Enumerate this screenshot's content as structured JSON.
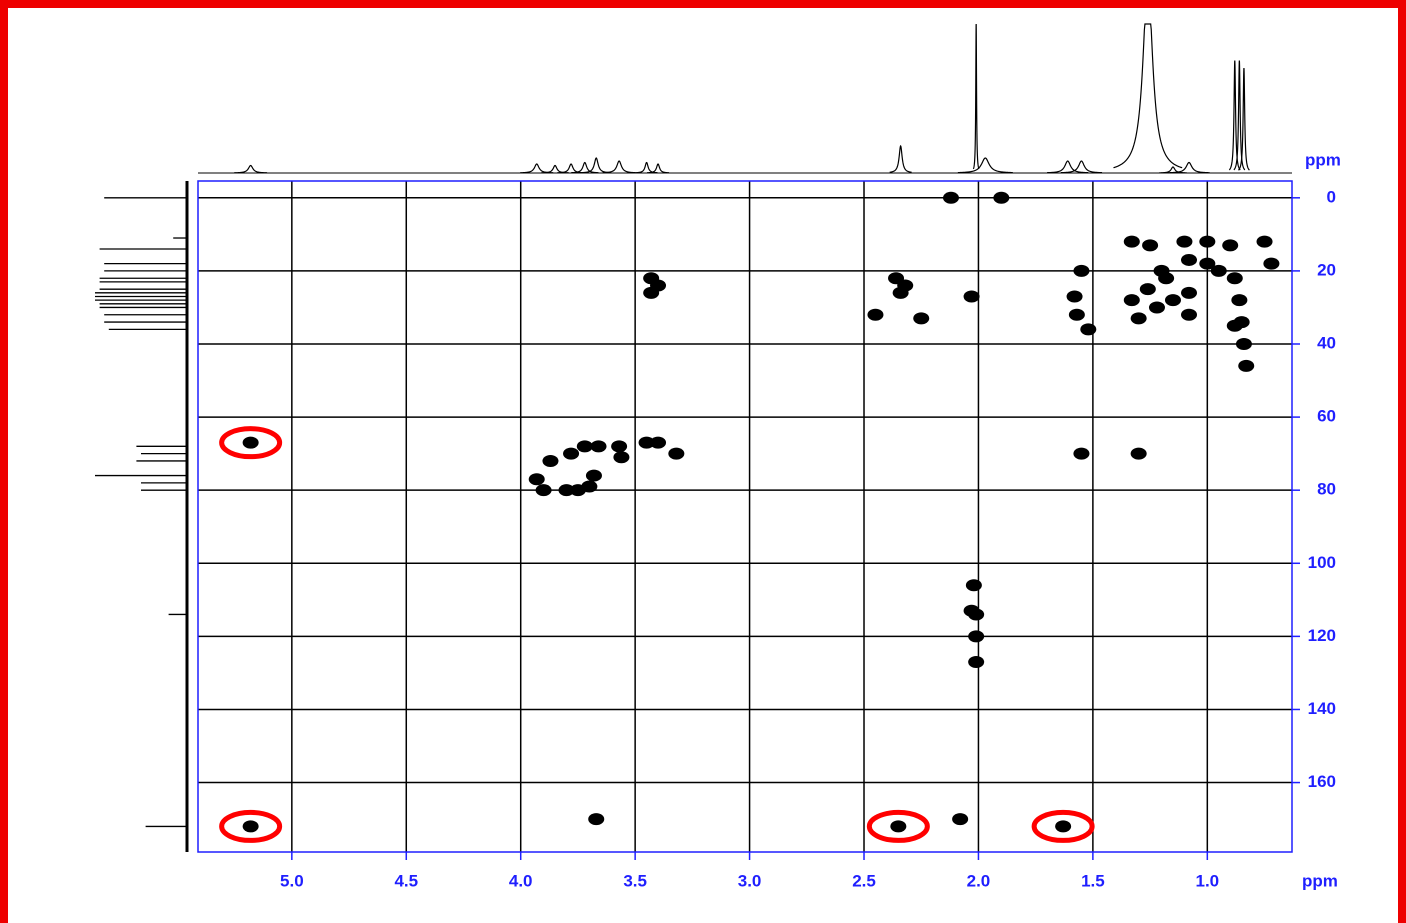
{
  "chart_data": {
    "type": "nmr2d",
    "x_label": "ppm",
    "y_label": "ppm",
    "xlim": [
      5.41,
      0.63
    ],
    "ylim": [
      179,
      -4.6
    ],
    "xticks": [
      {
        "value": 5.0,
        "label": "5.0"
      },
      {
        "value": 4.5,
        "label": "4.5"
      },
      {
        "value": 4.0,
        "label": "4.0"
      },
      {
        "value": 3.5,
        "label": "3.5"
      },
      {
        "value": 3.0,
        "label": "3.0"
      },
      {
        "value": 2.5,
        "label": "2.5"
      },
      {
        "value": 2.0,
        "label": "2.0"
      },
      {
        "value": 1.5,
        "label": "1.5"
      },
      {
        "value": 1.0,
        "label": "1.0"
      }
    ],
    "yticks": [
      0,
      20,
      40,
      60,
      80,
      100,
      120,
      140,
      160
    ],
    "grid": true,
    "peaks": {
      "color": "#000000",
      "x": [
        2.12,
        1.9,
        3.43,
        3.43,
        3.4,
        2.36,
        2.34,
        2.32,
        2.45,
        2.25,
        2.03,
        1.58,
        1.57,
        1.55,
        1.52,
        1.33,
        1.25,
        1.1,
        1.08,
        1.0,
        0.9,
        0.75,
        0.72,
        1.33,
        1.3,
        1.26,
        1.22,
        1.18,
        1.15,
        1.08,
        1.08,
        0.95,
        0.88,
        0.86,
        0.85,
        0.84,
        0.88,
        0.83,
        1.2,
        1.0,
        5.18,
        3.87,
        3.93,
        3.9,
        3.8,
        3.75,
        3.7,
        3.68,
        3.78,
        3.72,
        3.66,
        3.57,
        3.56,
        3.45,
        3.4,
        3.32,
        1.55,
        1.3,
        2.02,
        2.01,
        2.03,
        2.01,
        2.01,
        5.18,
        3.67,
        2.35,
        2.08,
        1.63
      ],
      "y": [
        0,
        0,
        22,
        26,
        24,
        22,
        26,
        24,
        32,
        33,
        27,
        27,
        32,
        20,
        36,
        12,
        13,
        12,
        17,
        12,
        13,
        12,
        18,
        28,
        33,
        25,
        30,
        22,
        28,
        26,
        32,
        20,
        22,
        28,
        34,
        40,
        35,
        46,
        20,
        18,
        67,
        72,
        77,
        80,
        80,
        80,
        79,
        76,
        70,
        68,
        68,
        68,
        71,
        67,
        67,
        70,
        70,
        70,
        106,
        114,
        113,
        120,
        127,
        172,
        170,
        172,
        170,
        172
      ]
    },
    "highlight": {
      "color": "#ff0000",
      "x": [
        5.18,
        5.18,
        2.35,
        1.63
      ],
      "y": [
        67,
        172,
        172,
        172
      ]
    },
    "h_spectrum": {
      "x": [
        5.18,
        3.93,
        3.85,
        3.78,
        3.72,
        3.67,
        3.57,
        3.45,
        3.4,
        2.34,
        2.01,
        1.97,
        1.61,
        1.55,
        1.26,
        1.15,
        1.08,
        0.88,
        0.86,
        0.84
      ],
      "heights": [
        0.05,
        0.06,
        0.05,
        0.06,
        0.07,
        0.1,
        0.08,
        0.07,
        0.06,
        0.18,
        1.0,
        0.1,
        0.08,
        0.08,
        1.3,
        0.04,
        0.07,
        0.75,
        0.75,
        0.7
      ],
      "widths": [
        0.012,
        0.012,
        0.01,
        0.01,
        0.01,
        0.01,
        0.012,
        0.008,
        0.008,
        0.008,
        0.002,
        0.02,
        0.015,
        0.015,
        0.025,
        0.01,
        0.015,
        0.004,
        0.004,
        0.004
      ]
    },
    "c_spectrum": {
      "y": [
        0,
        11,
        14,
        18,
        20,
        22,
        23,
        25,
        26,
        27,
        28,
        29,
        30,
        32,
        34,
        36,
        68,
        70,
        72,
        76,
        78,
        80,
        114,
        172
      ],
      "heights": [
        0.9,
        0.15,
        0.95,
        0.9,
        0.9,
        0.95,
        0.95,
        0.95,
        1.0,
        1.0,
        1.0,
        0.95,
        0.95,
        0.9,
        0.9,
        0.85,
        0.55,
        0.5,
        0.55,
        1.0,
        0.5,
        0.5,
        0.2,
        0.45
      ]
    }
  }
}
